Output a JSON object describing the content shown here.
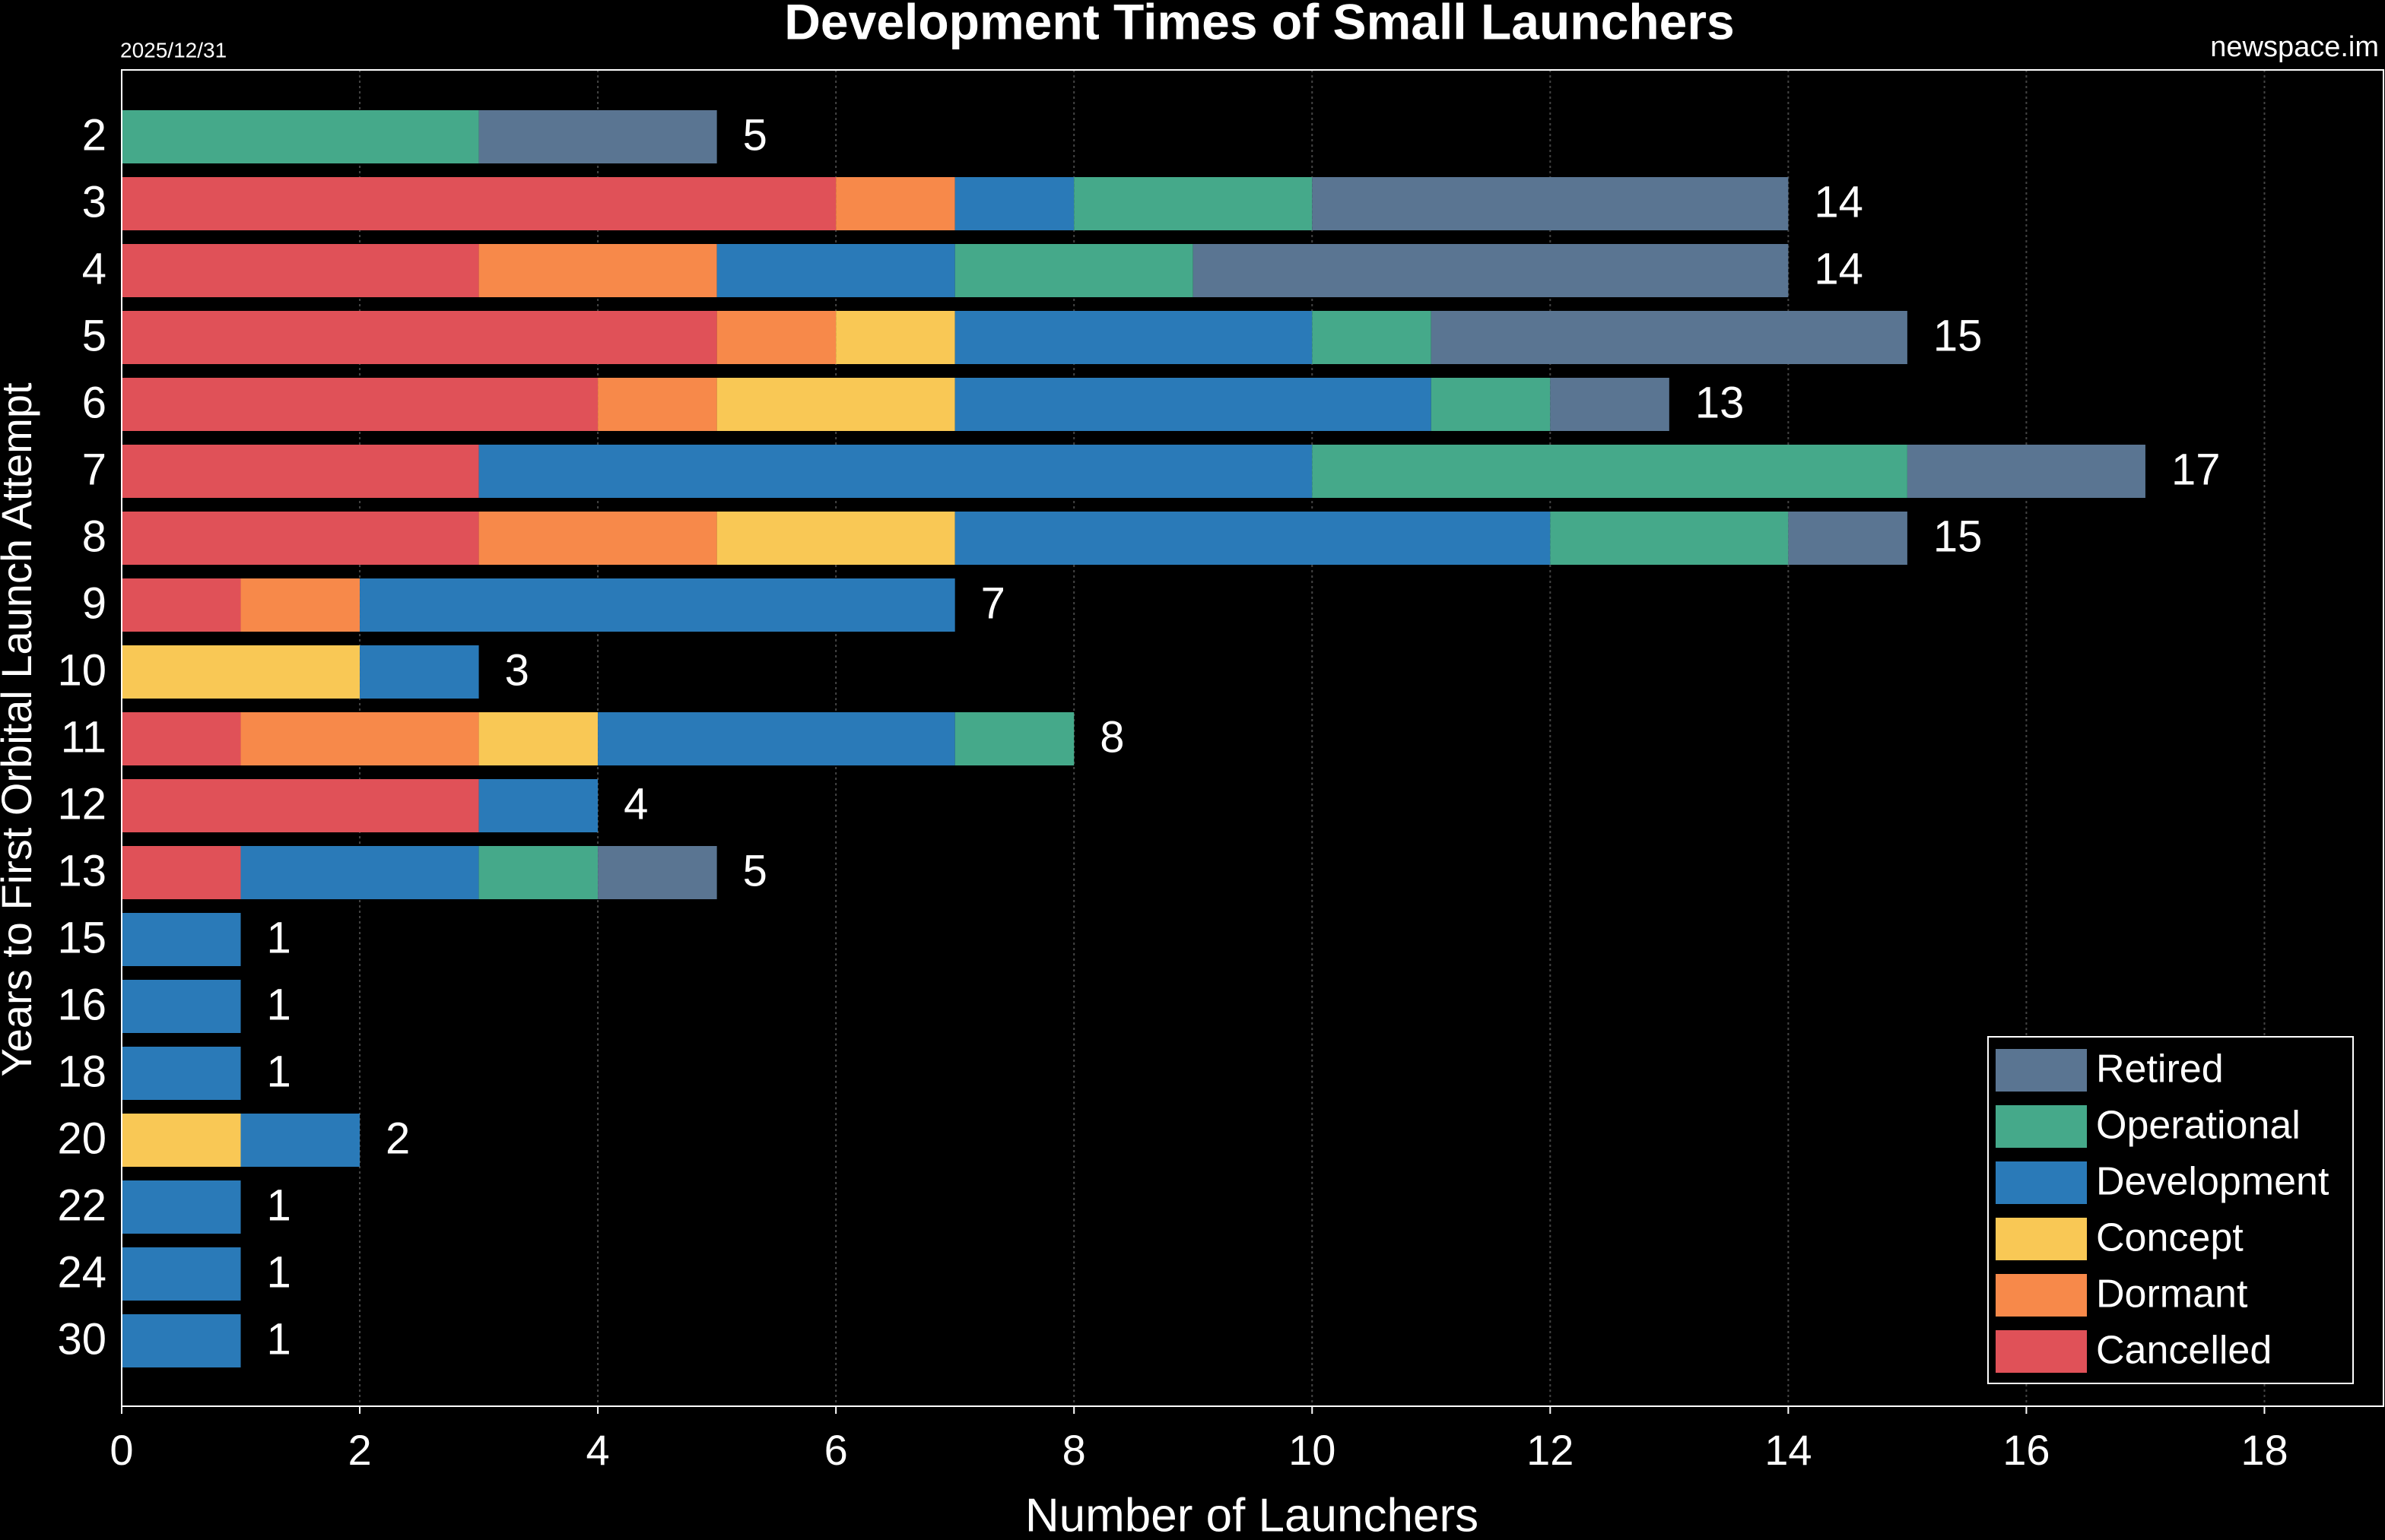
{
  "chart_data": {
    "type": "stacked-barh",
    "title": "Development Times of Small Launchers",
    "date": "2025/12/31",
    "source": "newspace.im",
    "xlabel": "Number of Launchers",
    "ylabel": "Years to First Orbital Launch Attempt",
    "categories": [
      "2",
      "3",
      "4",
      "5",
      "6",
      "7",
      "8",
      "9",
      "10",
      "11",
      "12",
      "13",
      "15",
      "16",
      "18",
      "20",
      "22",
      "24",
      "30"
    ],
    "series": [
      {
        "name": "Cancelled",
        "color": "#e05158",
        "values": [
          0,
          6,
          3,
          5,
          4,
          3,
          3,
          1,
          0,
          1,
          3,
          1,
          0,
          0,
          0,
          0,
          0,
          0,
          0
        ]
      },
      {
        "name": "Dormant",
        "color": "#f7894a",
        "values": [
          0,
          1,
          2,
          1,
          1,
          0,
          2,
          1,
          0,
          2,
          0,
          0,
          0,
          0,
          0,
          0,
          0,
          0,
          0
        ]
      },
      {
        "name": "Concept",
        "color": "#f9c855",
        "values": [
          0,
          0,
          0,
          1,
          2,
          0,
          2,
          0,
          2,
          1,
          0,
          0,
          0,
          0,
          0,
          1,
          0,
          0,
          0
        ]
      },
      {
        "name": "Development",
        "color": "#2a7ab8",
        "values": [
          0,
          1,
          2,
          3,
          4,
          7,
          5,
          5,
          1,
          3,
          1,
          2,
          1,
          1,
          1,
          1,
          1,
          1,
          1
        ]
      },
      {
        "name": "Operational",
        "color": "#45a98a",
        "values": [
          3,
          2,
          2,
          1,
          1,
          5,
          2,
          0,
          0,
          1,
          0,
          1,
          0,
          0,
          0,
          0,
          0,
          0,
          0
        ]
      },
      {
        "name": "Retired",
        "color": "#5a7592",
        "values": [
          2,
          4,
          5,
          4,
          1,
          2,
          1,
          0,
          0,
          0,
          0,
          1,
          0,
          0,
          0,
          0,
          0,
          0,
          0
        ]
      }
    ],
    "totals": [
      5,
      14,
      14,
      15,
      13,
      17,
      15,
      7,
      3,
      8,
      4,
      5,
      1,
      1,
      1,
      2,
      1,
      1,
      1
    ],
    "xlim": [
      0,
      19
    ],
    "xticks": [
      0,
      2,
      4,
      6,
      8,
      10,
      12,
      14,
      16,
      18
    ],
    "grid": true,
    "legend": "lower right"
  }
}
